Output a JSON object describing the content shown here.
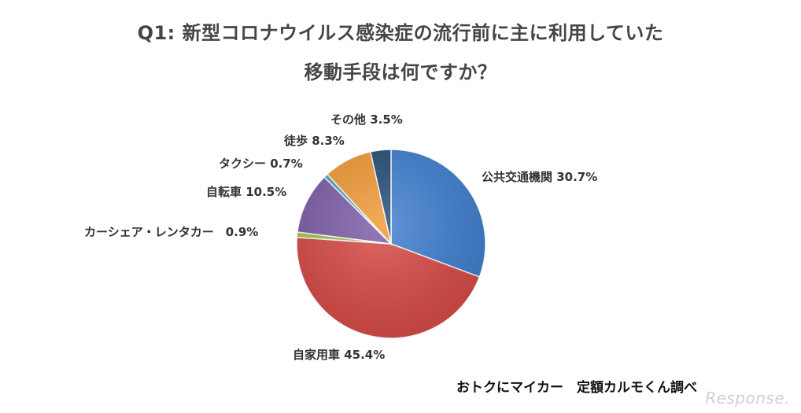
{
  "title": {
    "line1": "Q1: 新型コロナウイルス感染症の流行前に主に利用していた",
    "line2": "移動手段は何ですか？"
  },
  "source": "おトクにマイカー　定額カルモくん調べ",
  "watermark": "Response.",
  "chart_data": {
    "type": "pie",
    "title": "Q1: 新型コロナウイルス感染症の流行前に主に利用していた 移動手段は何ですか？",
    "slices": [
      {
        "name": "公共交通機関",
        "value": 30.7,
        "label": "公共交通機関 30.7%",
        "color": "#3f7fd0"
      },
      {
        "name": "自家用車",
        "value": 45.4,
        "label": "自家用車 45.4%",
        "color": "#d84a45"
      },
      {
        "name": "カーシェア・レンタカー",
        "value": 0.9,
        "label": "カーシェア・レンタカー　0.9%",
        "color": "#a6c44e"
      },
      {
        "name": "自転車",
        "value": 10.5,
        "label": "自転車 10.5%",
        "color": "#7d5ea8"
      },
      {
        "name": "タクシー",
        "value": 0.7,
        "label": "タクシー 0.7%",
        "color": "#3fa9c6"
      },
      {
        "name": "徒歩",
        "value": 8.3,
        "label": "徒歩 8.3%",
        "color": "#f29a35"
      },
      {
        "name": "その他",
        "value": 3.5,
        "label": "その他 3.5%",
        "color": "#244d78"
      }
    ]
  }
}
